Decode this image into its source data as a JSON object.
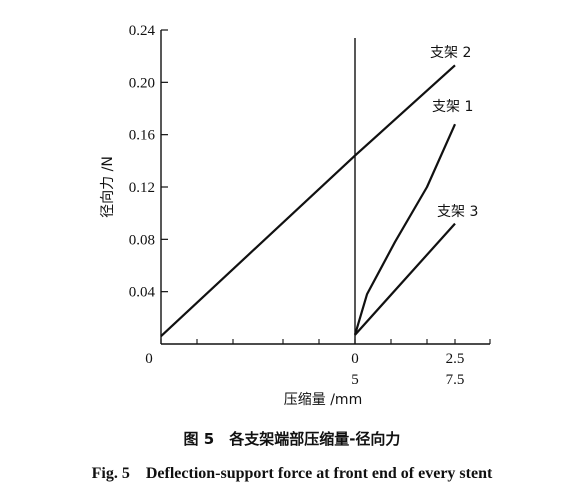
{
  "chart_data": {
    "type": "line",
    "ylabel": "径向力 /N",
    "xlabel": "压缩量 /mm",
    "ylim": [
      0,
      0.24
    ],
    "y_ticks": [
      "0.04",
      "0.08",
      "0.12",
      "0.16",
      "0.20",
      "0.24"
    ],
    "x_tick_rows": {
      "row1": [
        "0",
        "0",
        "2.5"
      ],
      "row2": [
        "5",
        "7.5"
      ]
    },
    "grid": false,
    "series": [
      {
        "name": "支架 2",
        "side": "left",
        "x": [
          0,
          5
        ],
        "y": [
          0.006,
          0.144
        ]
      },
      {
        "name": "支架 2",
        "side": "right",
        "x": [
          0,
          2.5
        ],
        "y": [
          0.144,
          0.213
        ]
      },
      {
        "name": "支架 1",
        "side": "right",
        "x": [
          0,
          0.3,
          1.0,
          1.8,
          2.5
        ],
        "y": [
          0.007,
          0.038,
          0.078,
          0.12,
          0.168
        ]
      },
      {
        "name": "支架 3",
        "side": "right",
        "x": [
          0,
          2.5
        ],
        "y": [
          0.007,
          0.092
        ]
      }
    ]
  },
  "caption": {
    "cn": "图 5　各支架端部压缩量-径向力",
    "en": "Fig. 5　Deflection-support force at front end of every stent"
  }
}
